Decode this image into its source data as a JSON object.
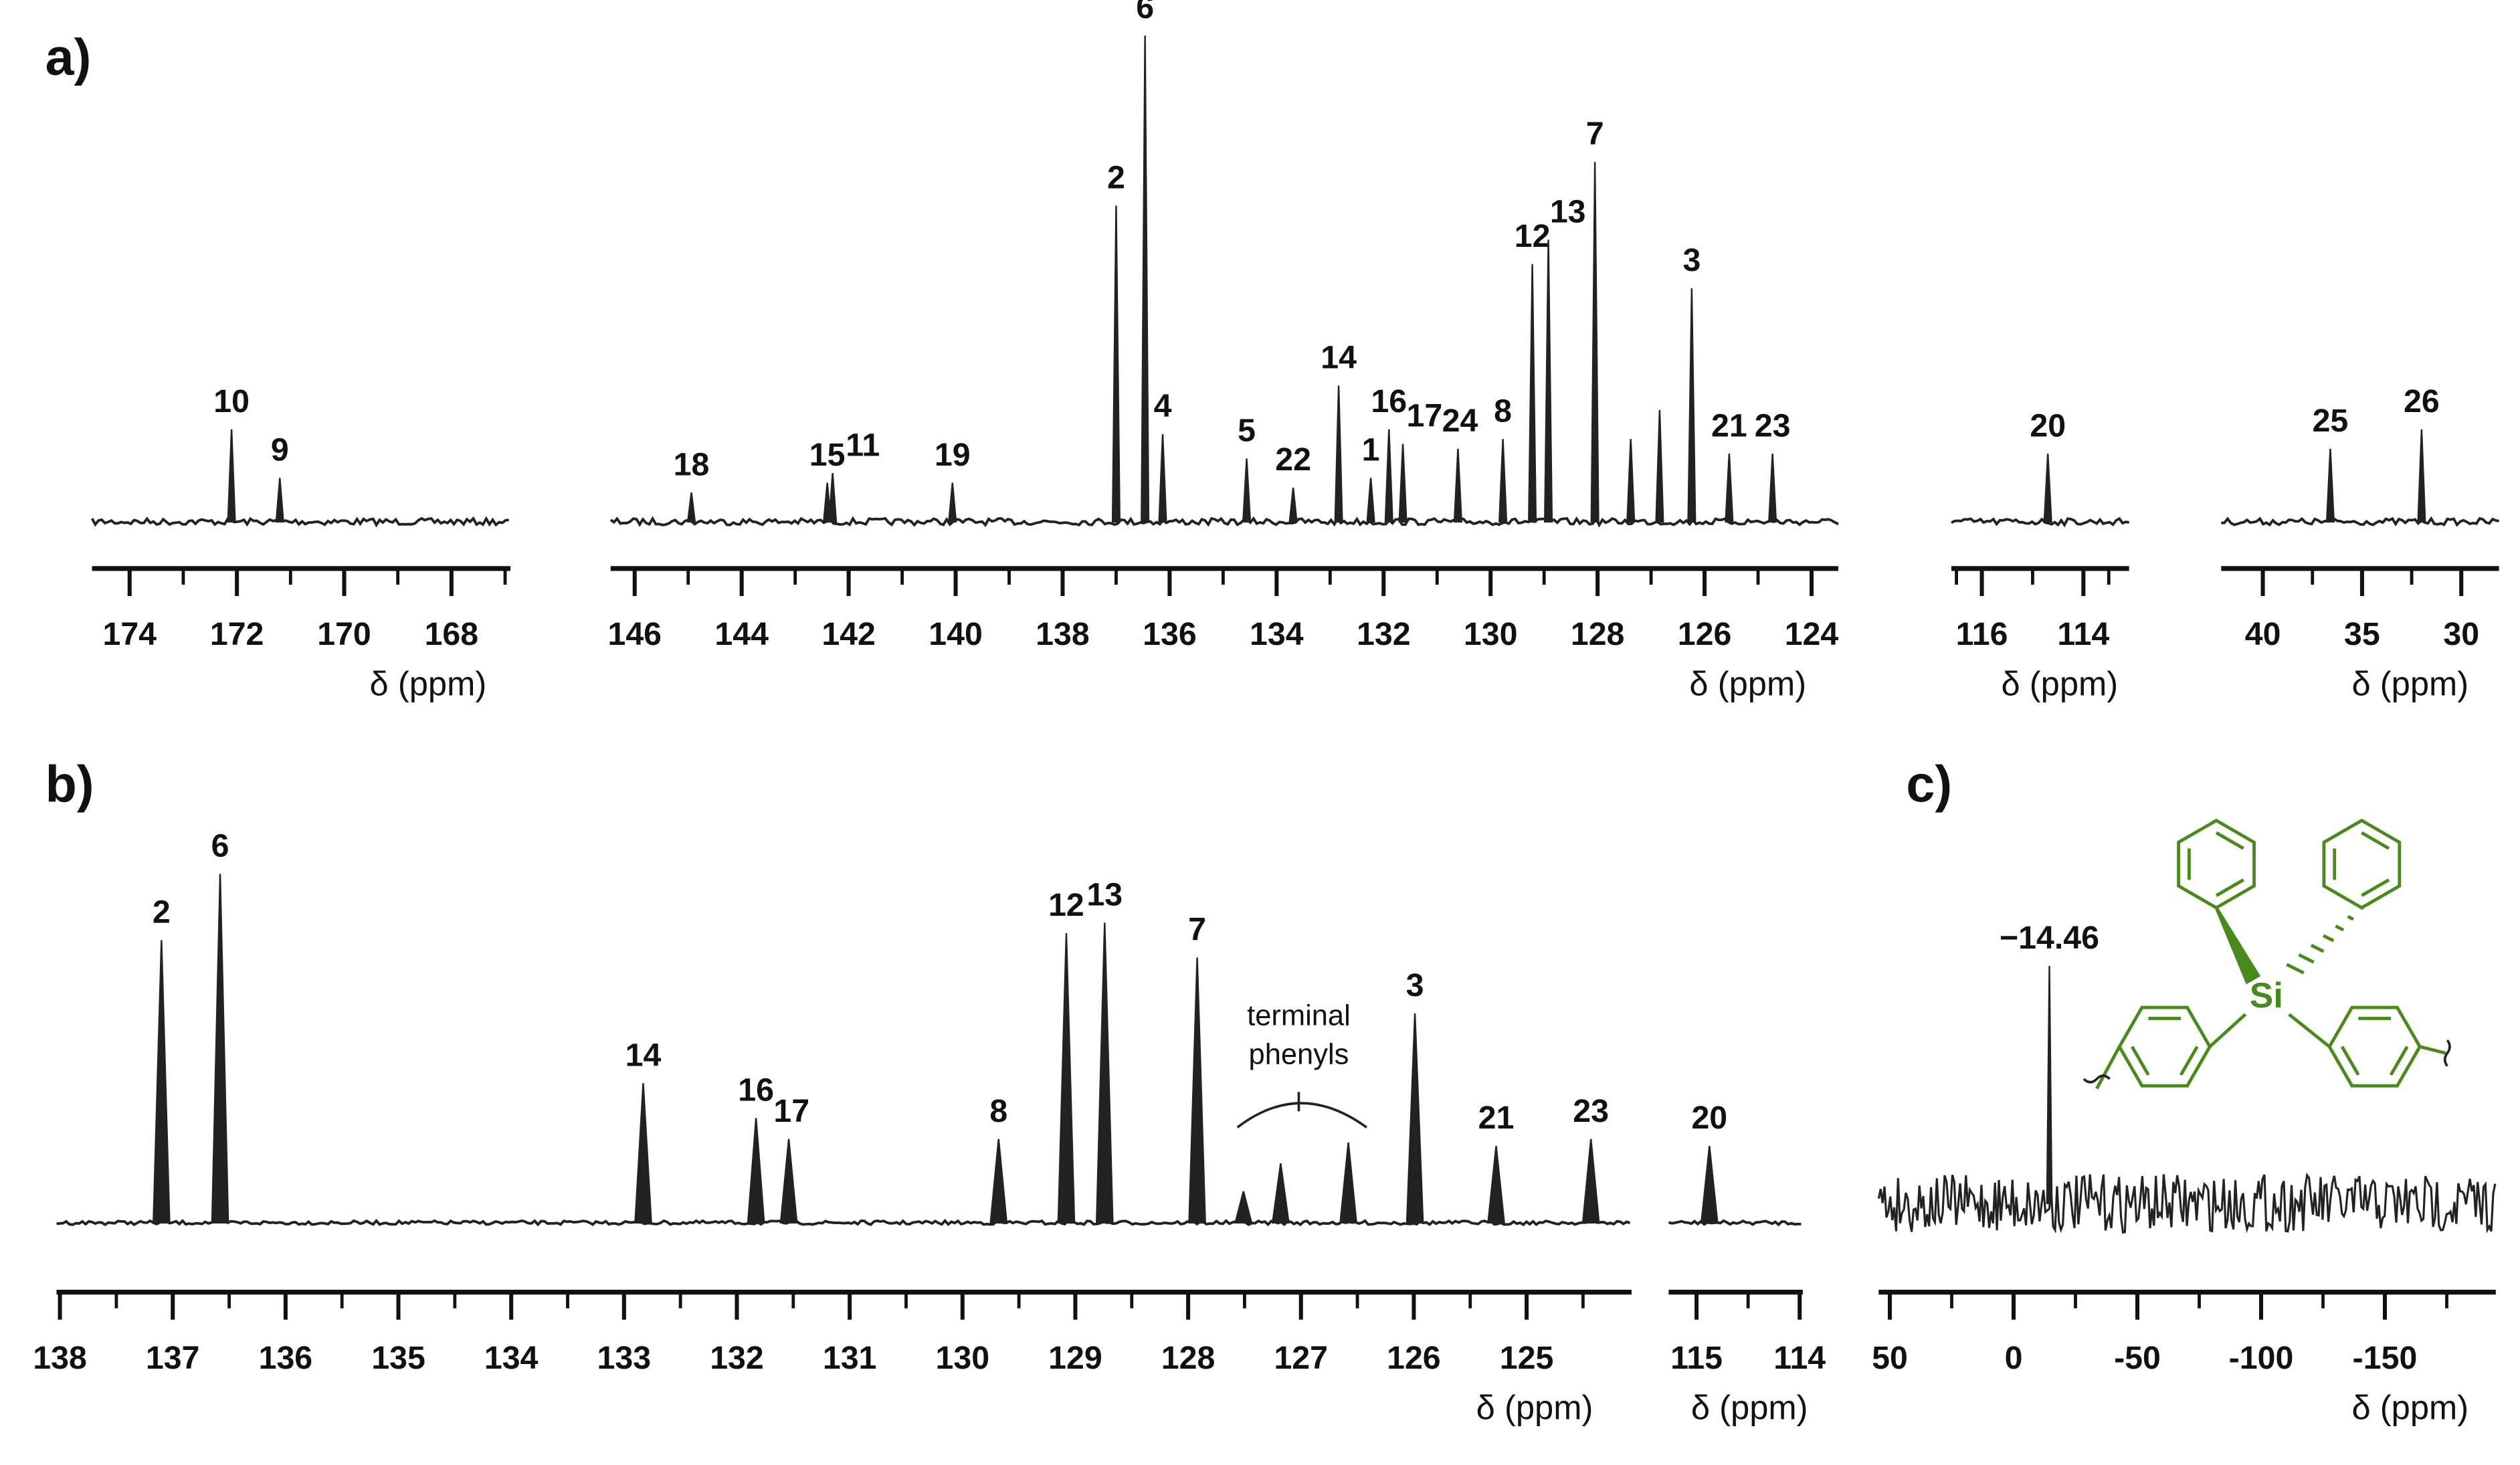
{
  "chart_data": [
    {
      "type": "spectrum",
      "panel_label": "a)",
      "xlabel": "δ (ppm)",
      "xlim": [
        174.7,
        166.9
      ],
      "xticks": [
        174,
        172,
        170,
        168
      ],
      "xminor_ticks": [
        173,
        171,
        169,
        167
      ],
      "ylim": [
        0,
        100
      ],
      "labels": [
        "10",
        "9"
      ],
      "x": [
        172.1,
        171.2
      ],
      "values": [
        19,
        9
      ]
    },
    {
      "type": "spectrum",
      "xlabel": "δ (ppm)",
      "xlim": [
        146.45,
        123.5
      ],
      "xticks": [
        146,
        144,
        142,
        140,
        138,
        136,
        134,
        132,
        130,
        128,
        126,
        124
      ],
      "xminor_ticks": [
        145,
        143,
        141,
        139,
        137,
        135,
        133,
        131,
        129,
        127,
        125
      ],
      "ylim": [
        0,
        100
      ],
      "labels": [
        "18",
        "15",
        "11",
        "19",
        "2",
        "6",
        "4",
        "5",
        "22",
        "14",
        "1",
        "16",
        "17",
        "24",
        "8",
        "12",
        "13",
        "7",
        null,
        null,
        "3",
        "21",
        "23"
      ],
      "x": [
        144.94,
        142.4,
        142.3,
        140.06,
        137.0,
        136.46,
        136.13,
        134.56,
        133.69,
        132.84,
        132.24,
        131.9,
        131.64,
        130.61,
        129.77,
        129.22,
        128.92,
        128.05,
        127.38,
        126.84,
        126.24,
        125.54,
        124.73
      ],
      "values": [
        6,
        8,
        10,
        8,
        65,
        100,
        18,
        13,
        7,
        28,
        9,
        19,
        16,
        15,
        17,
        53,
        58,
        74,
        17,
        23,
        48,
        14,
        14
      ]
    },
    {
      "type": "spectrum",
      "xlabel": "δ (ppm)",
      "xlim": [
        116.6,
        113.1
      ],
      "xticks": [
        116,
        114
      ],
      "xminor_ticks": [
        116.5,
        115,
        113.5
      ],
      "ylim": [
        0,
        100
      ],
      "labels": [
        "20"
      ],
      "x": [
        114.7
      ],
      "values": [
        14
      ]
    },
    {
      "type": "spectrum",
      "xlabel": "δ (ppm)",
      "xlim": [
        42.1,
        28.1
      ],
      "xticks": [
        40,
        35,
        30
      ],
      "xminor_ticks": [
        37.5,
        32.5
      ],
      "ylim": [
        0,
        100
      ],
      "labels": [
        "25",
        "26"
      ],
      "x": [
        36.6,
        32.0
      ],
      "values": [
        15,
        19
      ]
    },
    {
      "type": "spectrum",
      "panel_label": "b)",
      "xlabel": "δ (ppm)",
      "annotation": [
        "terminal",
        "phenyls"
      ],
      "xlim": [
        138.03,
        124.07
      ],
      "xticks": [
        138,
        137,
        136,
        135,
        134,
        133,
        132,
        131,
        130,
        129,
        128,
        127,
        126,
        125
      ],
      "xminor_ticks": [
        137.5,
        136.5,
        135.5,
        134.5,
        133.5,
        132.5,
        131.5,
        130.5,
        129.5,
        128.5,
        127.5,
        126.5,
        125.5,
        124.5
      ],
      "ylim": [
        0,
        100
      ],
      "labels": [
        "2",
        "6",
        "14",
        "16",
        "17",
        "8",
        "12",
        "13",
        "7",
        null,
        null,
        null,
        "3",
        "21",
        "23"
      ],
      "x": [
        137.1,
        136.58,
        132.83,
        131.83,
        131.54,
        129.68,
        129.08,
        128.74,
        127.92,
        127.51,
        127.18,
        126.58,
        125.99,
        125.27,
        124.43
      ],
      "values": [
        81,
        100,
        40,
        30,
        24,
        24,
        83,
        86,
        76,
        9,
        17,
        23,
        60,
        22,
        24
      ]
    },
    {
      "type": "spectrum",
      "xlabel": "δ (ppm)",
      "xlim": [
        115.27,
        113.97
      ],
      "xticks": [
        115,
        114
      ],
      "xminor_ticks": [
        114.5
      ],
      "ylim": [
        0,
        100
      ],
      "labels": [
        "20"
      ],
      "x": [
        114.875
      ],
      "values": [
        22
      ]
    },
    {
      "type": "spectrum",
      "panel_label": "c)",
      "xlabel": "δ (ppm)",
      "structure_label": "Si",
      "xlim": [
        54.5,
        -194.8
      ],
      "xticks": [
        50,
        0,
        -50,
        -100,
        -150
      ],
      "xminor_ticks": [
        25,
        -25,
        -75,
        -125,
        -175
      ],
      "ylim": [
        0,
        100
      ],
      "labels": [
        "−14.46"
      ],
      "x": [
        -14.46
      ],
      "values": [
        100
      ]
    }
  ]
}
